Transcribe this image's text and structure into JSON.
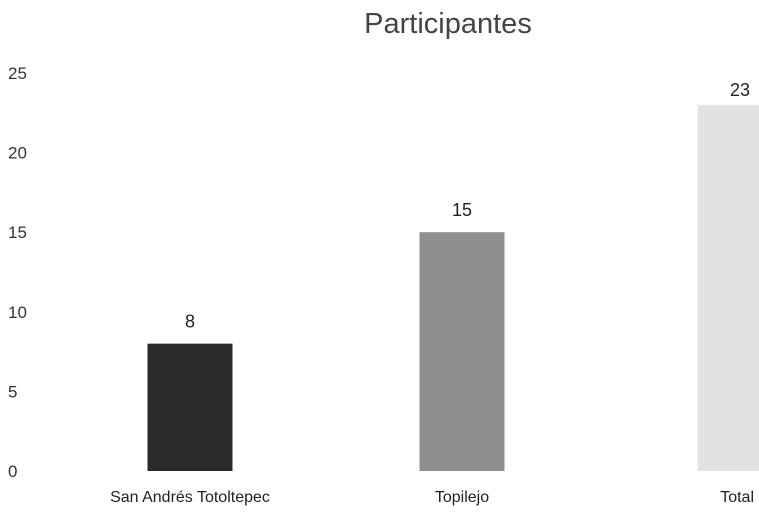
{
  "chart_data": {
    "type": "bar",
    "title": "Participantes",
    "categories": [
      "San Andrés Totoltepec",
      "Topilejo",
      "Total"
    ],
    "values": [
      8,
      15,
      23
    ],
    "data_labels": [
      "8",
      "15",
      "23"
    ],
    "xlabel": "",
    "ylabel": "",
    "ylim": [
      0,
      25
    ],
    "yticks": [
      "0",
      "5",
      "10",
      "15",
      "20",
      "25"
    ],
    "grid": false,
    "legend": "none",
    "colors": {
      "bar_San Andrés Totoltepec": "#2b2b2b",
      "bar_Topilejo": "#8f8f8f",
      "bar_Total": "#e2e2e2",
      "label_Total": "#777777"
    }
  }
}
